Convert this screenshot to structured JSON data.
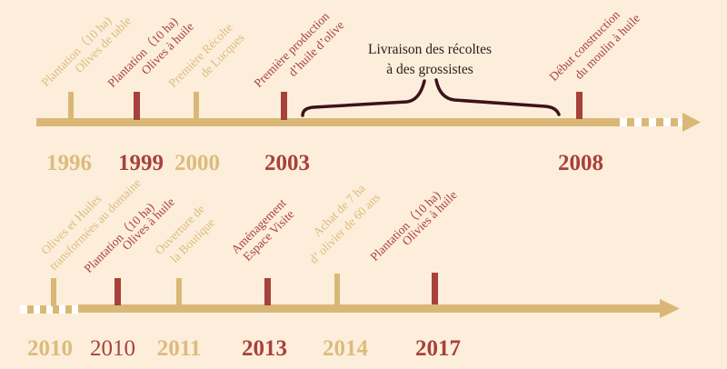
{
  "colors": {
    "background": "#fdeedb",
    "tan": "#d9b877",
    "red": "#a8413b",
    "brace": "#3d1218"
  },
  "top_timeline": {
    "events": [
      {
        "year": "1996",
        "lines": [
          "Plantation（10 ha)",
          "Olives de table"
        ],
        "color": "tan"
      },
      {
        "year": "1999",
        "lines": [
          "Plantation（10 ha)",
          "Olives à huile"
        ],
        "color": "red"
      },
      {
        "year": "2000",
        "lines": [
          "Première Récolte",
          "de Lucques"
        ],
        "color": "tan"
      },
      {
        "year": "2003",
        "lines": [
          "Première  production",
          "d’huile d’olive"
        ],
        "color": "red"
      },
      {
        "year": "2008",
        "lines": [
          "Début construction",
          "du moulin à huile"
        ],
        "color": "red"
      }
    ],
    "brace_note": [
      "Livraison des récoltes",
      "à des grossistes"
    ]
  },
  "bottom_timeline": {
    "events": [
      {
        "year": "2010",
        "lines": [
          "Olives et Huiles",
          "transformées au domaine"
        ],
        "color": "tan"
      },
      {
        "year": "2010",
        "lines": [
          "Plantation（10 ha)",
          "Olives à huile"
        ],
        "color": "red"
      },
      {
        "year": "2011",
        "lines": [
          "Ouverture de",
          "la  Boutique"
        ],
        "color": "tan"
      },
      {
        "year": "2013",
        "lines": [
          "Aménagement",
          "Espace Visite"
        ],
        "color": "red"
      },
      {
        "year": "2014",
        "lines": [
          "Achat de 7 ha",
          "d’ olivier de 60 ans"
        ],
        "color": "tan"
      },
      {
        "year": "2017",
        "lines": [
          "Plantation（10 ha)",
          "Olivies à huile"
        ],
        "color": "red"
      }
    ]
  }
}
